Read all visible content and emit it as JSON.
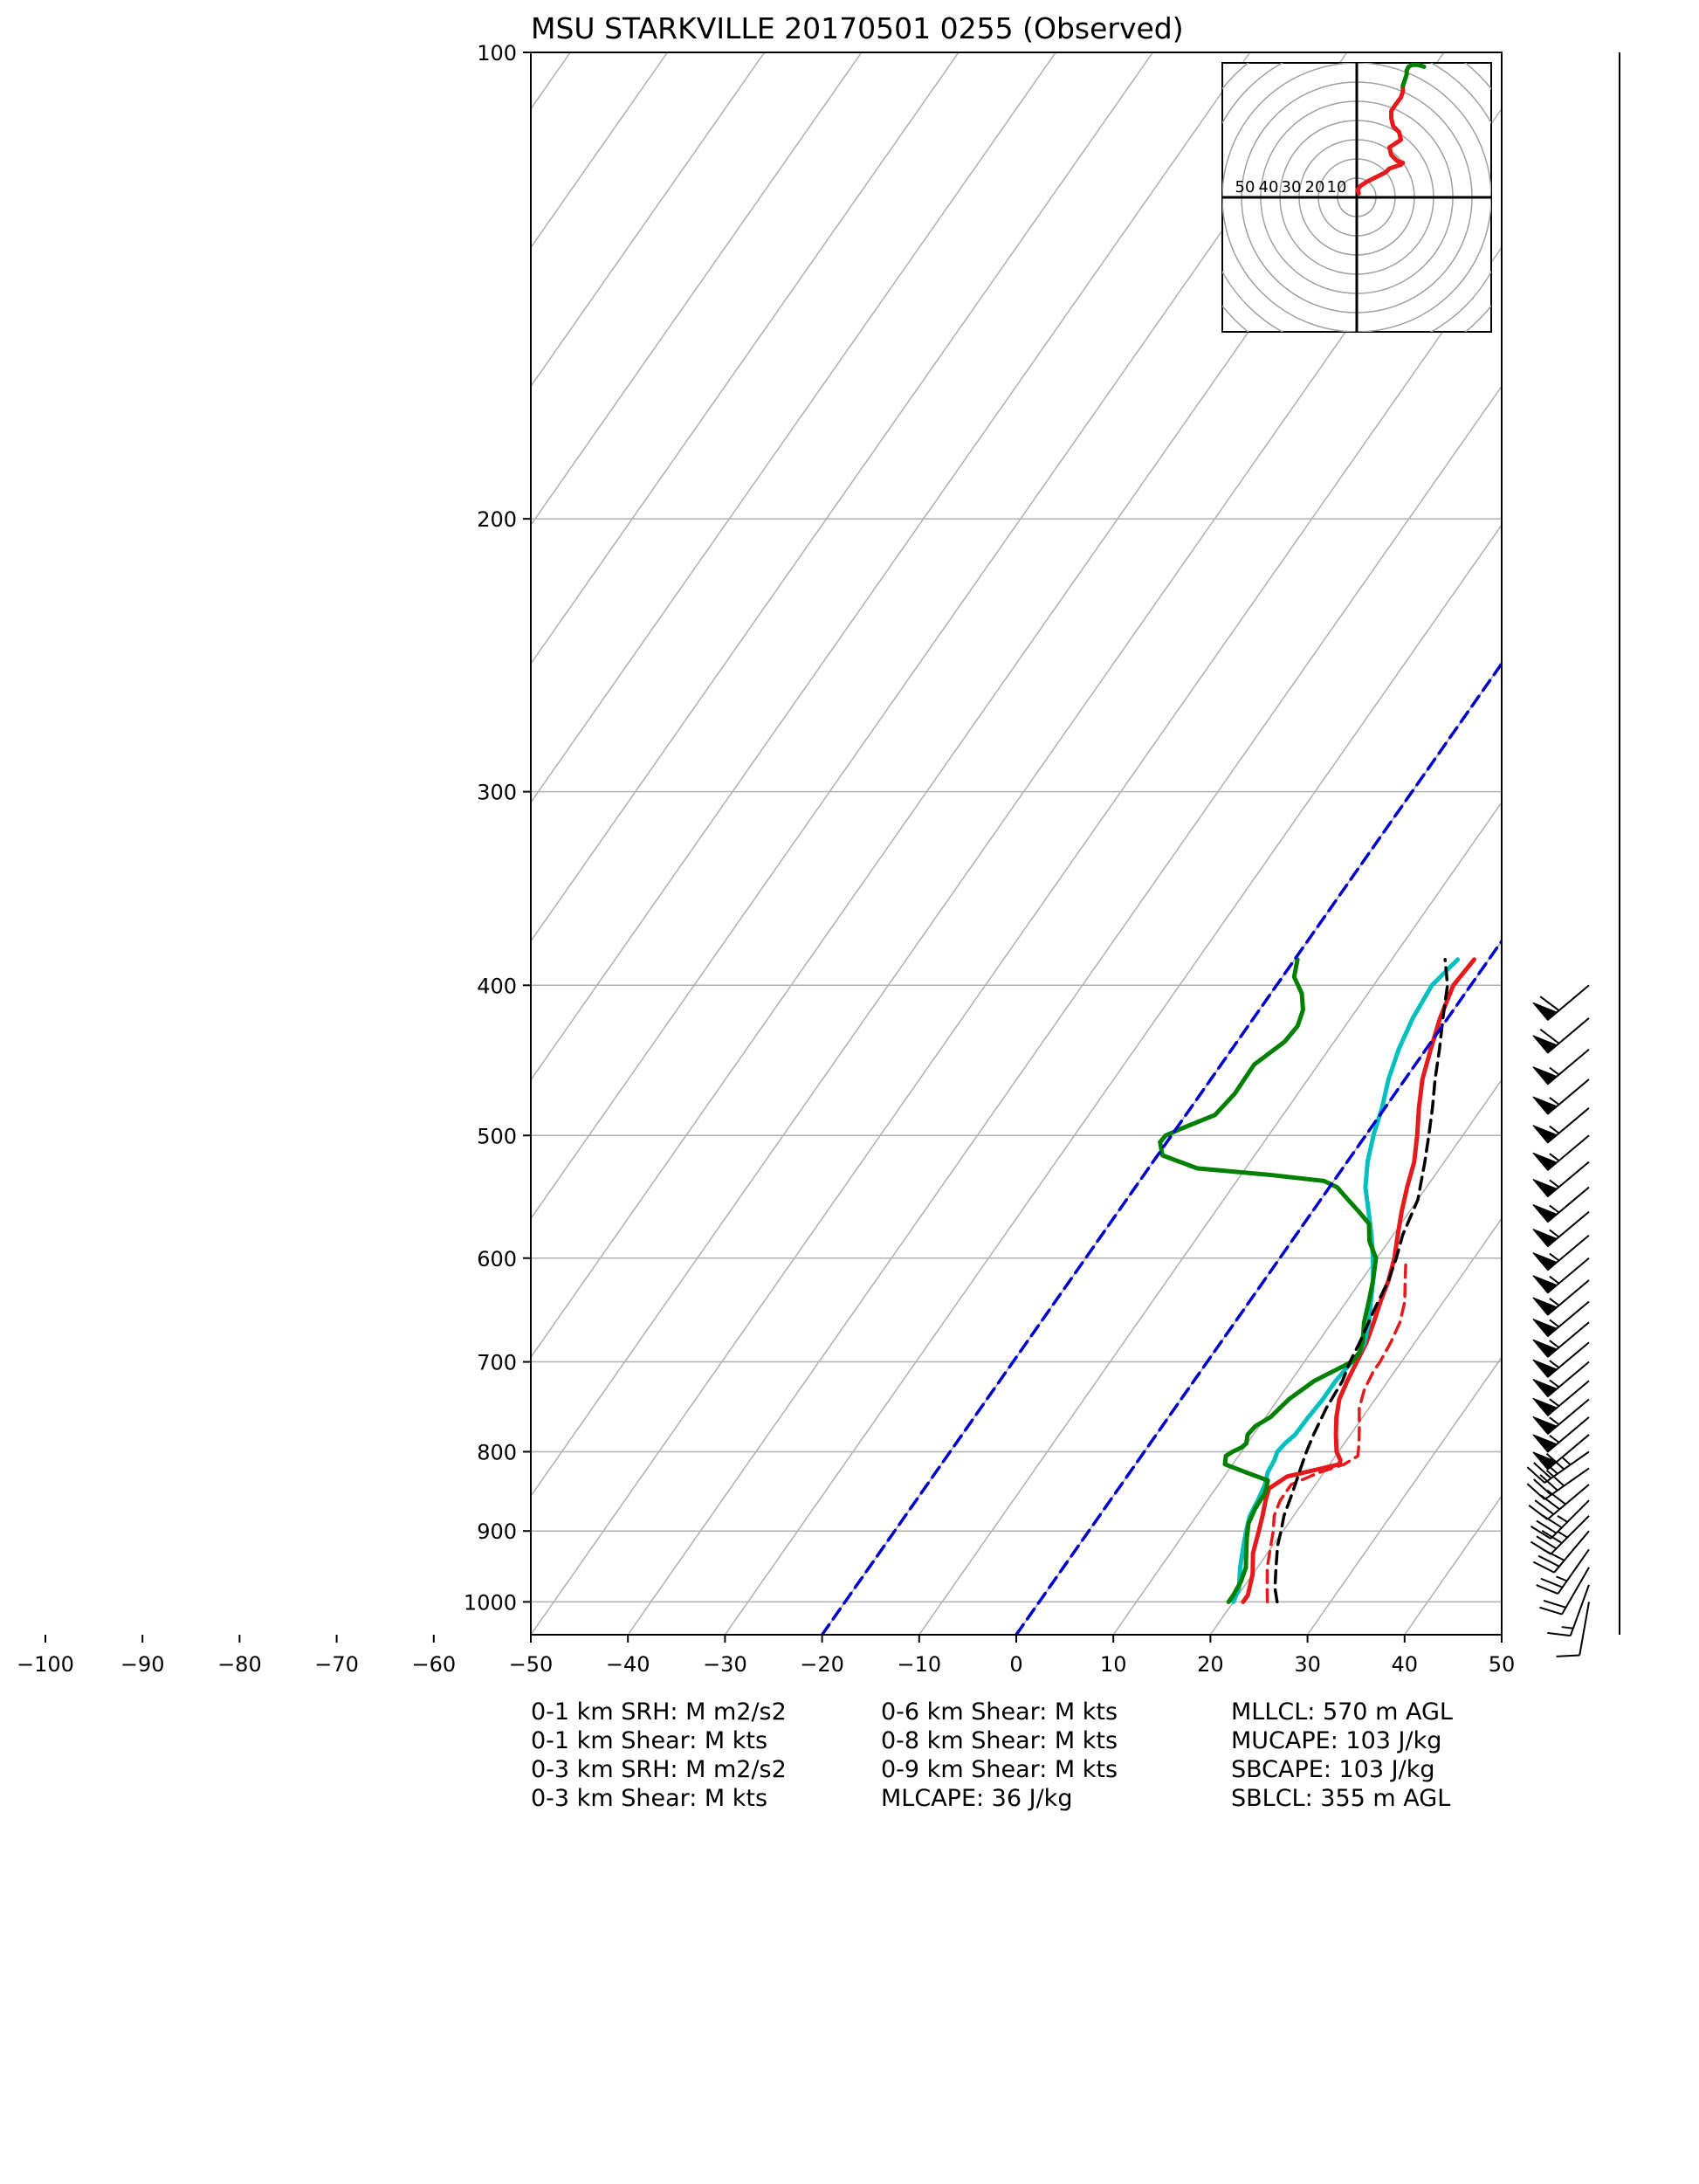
{
  "chart_data": {
    "type": "line",
    "title": "MSU STARKVILLE 20170501 0255   (Observed)",
    "x_axis": {
      "quantity": "temperature (°C)",
      "range": [
        -100,
        50
      ],
      "ticks": [
        -100,
        -90,
        -80,
        -70,
        -60,
        -50,
        -40,
        -30,
        -20,
        -10,
        0,
        10,
        20,
        30,
        40,
        50
      ],
      "tick_labels": [
        "−100",
        "−90",
        "−80",
        "−70",
        "−60",
        "−50",
        "−40",
        "−30",
        "−20",
        "−10",
        "0",
        "10",
        "20",
        "30",
        "40",
        "50"
      ]
    },
    "y_axis": {
      "quantity": "pressure (hPa)",
      "scale": "log",
      "range": [
        1050,
        100
      ],
      "ticks": [
        100,
        200,
        300,
        400,
        500,
        600,
        700,
        800,
        900,
        1000
      ],
      "tick_labels": [
        "100",
        "200",
        "300",
        "400",
        "500",
        "600",
        "700",
        "800",
        "900",
        "1000"
      ]
    },
    "grid": true,
    "skew": true,
    "series": [
      {
        "color": "#e41a1c",
        "style": "solid",
        "p": [
          1000,
          990,
          960,
          930,
          900,
          880,
          860,
          845,
          830,
          820,
          815,
          810,
          800,
          780,
          760,
          740,
          720,
          700,
          680,
          660,
          640,
          620,
          600,
          580,
          560,
          540,
          520,
          500,
          480,
          460,
          440,
          420,
          400,
          385
        ],
        "t": [
          21,
          21,
          20,
          18.5,
          17.5,
          16.8,
          16,
          15.5,
          16.5,
          19.5,
          21,
          20.8,
          19.8,
          18.5,
          17.3,
          16.3,
          15.8,
          15.4,
          15,
          14.3,
          13.5,
          12.8,
          11.8,
          10.5,
          9.2,
          8,
          6.9,
          5.3,
          3.5,
          1.8,
          0.5,
          -0.8,
          -1.8,
          -1.5
        ]
      },
      {
        "color": "#e41a1c",
        "style": "dashed",
        "p": [
          1000,
          980,
          950,
          920,
          900,
          880,
          860,
          840,
          825,
          815,
          805,
          790,
          770,
          750,
          730,
          710,
          700,
          680,
          660,
          640,
          620,
          600
        ],
        "t": [
          23.5,
          22.5,
          21,
          19.8,
          19,
          18,
          17.5,
          17.5,
          19.5,
          21.5,
          22.3,
          21.5,
          20.3,
          19,
          18.2,
          17.8,
          17.8,
          17.5,
          17,
          16,
          14.5,
          13
        ],
        "note": "virtual temperature"
      },
      {
        "color": "#00bfbf",
        "style": "solid",
        "p": [
          1000,
          980,
          950,
          920,
          900,
          880,
          860,
          840,
          825,
          810,
          800,
          790,
          780,
          760,
          740,
          720,
          700,
          690,
          680,
          660,
          640,
          620,
          600,
          580,
          560,
          540,
          520,
          500,
          480,
          460,
          440,
          420,
          400,
          385
        ],
        "t": [
          20,
          19.6,
          18.2,
          17,
          16.2,
          15.5,
          15.2,
          14.8,
          14.2,
          14,
          13.7,
          13.9,
          14.3,
          14.4,
          14.6,
          14.6,
          14.9,
          15,
          14.8,
          13.8,
          12.5,
          11.2,
          9.6,
          7.8,
          5.8,
          3.7,
          2.1,
          0.8,
          -0.3,
          -1.7,
          -2.8,
          -3.6,
          -4,
          -3.2
        ]
      },
      {
        "color": "#008000",
        "style": "solid",
        "p": [
          1000,
          990,
          970,
          950,
          930,
          910,
          890,
          870,
          850,
          835,
          825,
          815,
          805,
          800,
          795,
          790,
          780,
          770,
          760,
          740,
          720,
          700,
          690,
          680,
          660,
          640,
          620,
          600,
          585,
          570,
          560,
          550,
          540,
          535,
          530,
          525,
          515,
          505,
          500,
          495,
          485,
          470,
          450,
          435,
          425,
          415,
          405,
          395,
          385
        ],
        "t": [
          19.5,
          19.5,
          19.3,
          18.8,
          17.8,
          16.8,
          15.9,
          15.5,
          15.4,
          14.8,
          12,
          9.2,
          8.7,
          9.1,
          9.7,
          9.9,
          9.4,
          9.6,
          10.5,
          11.1,
          12.4,
          14.9,
          15,
          14.6,
          13.3,
          12.3,
          11.2,
          9.9,
          8,
          6.7,
          4.8,
          2.8,
          0.8,
          -1,
          -7.2,
          -15,
          -19.5,
          -20.7,
          -20.6,
          -19.5,
          -17,
          -16.5,
          -16.6,
          -15.1,
          -14.9,
          -15.5,
          -16.8,
          -18.8,
          -19.7
        ]
      },
      {
        "color": "#000000",
        "style": "dashed",
        "p": [
          1000,
          980,
          950,
          920,
          900,
          880,
          850,
          820,
          800,
          780,
          750,
          720,
          700,
          680,
          650,
          620,
          600,
          580,
          550,
          520,
          500,
          480,
          460,
          440,
          420,
          400,
          385
        ],
        "t": [
          24.5,
          23.3,
          21.9,
          20.5,
          19.8,
          19,
          18.2,
          17.3,
          16.7,
          16.2,
          15.6,
          15.3,
          14.7,
          14.3,
          13.5,
          12.8,
          12,
          11,
          10,
          8,
          6.5,
          4.9,
          3.1,
          1.4,
          -0.5,
          -2.4,
          -4.5
        ],
        "note": "parcel path"
      },
      {
        "color": "#0000cc",
        "style": "dashed",
        "p": [
          1050,
          100
        ],
        "t": [
          -20,
          -20
        ],
        "note": "isotherm"
      },
      {
        "color": "#0000cc",
        "style": "dashed",
        "p": [
          1050,
          100
        ],
        "t": [
          0,
          0
        ],
        "note": "isotherm"
      }
    ],
    "isotherms_gray": [
      -160,
      -150,
      -140,
      -130,
      -120,
      -110,
      -100,
      -90,
      -80,
      -70,
      -60,
      -50,
      -40,
      -30,
      -20,
      -10,
      0,
      10,
      20,
      30,
      40,
      50
    ],
    "hodograph": {
      "rings_kts": [
        10,
        20,
        30,
        40,
        50,
        60,
        70,
        80,
        90,
        100
      ],
      "ring_labels": [
        "50",
        "40",
        "30",
        "20",
        "10"
      ],
      "trace_red": [
        [
          1,
          2
        ],
        [
          0.5,
          4
        ],
        [
          2,
          6
        ],
        [
          5,
          8
        ],
        [
          9,
          10
        ],
        [
          13,
          12
        ],
        [
          15,
          13
        ],
        [
          17,
          15
        ],
        [
          20,
          16
        ],
        [
          23,
          17
        ],
        [
          24,
          18
        ],
        [
          21,
          19
        ],
        [
          18,
          22
        ],
        [
          17,
          26
        ],
        [
          20,
          28
        ],
        [
          23,
          30
        ],
        [
          22,
          34
        ],
        [
          19,
          37
        ],
        [
          18,
          41
        ],
        [
          18,
          45
        ],
        [
          20,
          48
        ],
        [
          23,
          52
        ],
        [
          24,
          55
        ],
        [
          24,
          58
        ]
      ],
      "trace_green": [
        [
          24,
          58
        ],
        [
          25,
          61
        ],
        [
          26,
          64
        ],
        [
          26,
          66
        ],
        [
          27,
          68
        ],
        [
          29,
          69
        ],
        [
          32,
          69
        ],
        [
          35,
          68
        ]
      ]
    },
    "wind_barbs": {
      "p": [
        1000,
        975,
        950,
        925,
        900,
        880,
        860,
        840,
        820,
        800,
        780,
        760,
        740,
        720,
        700,
        680,
        660,
        640,
        620,
        600,
        580,
        560,
        540,
        520,
        500,
        480,
        460,
        440,
        420,
        400
      ],
      "dir": [
        190,
        200,
        210,
        215,
        220,
        225,
        225,
        230,
        235,
        235,
        230,
        230,
        230,
        230,
        230,
        230,
        230,
        230,
        230,
        230,
        230,
        230,
        230,
        230,
        230,
        230,
        230,
        230,
        230,
        230
      ],
      "speed": [
        10,
        15,
        20,
        25,
        30,
        35,
        35,
        40,
        40,
        45,
        50,
        55,
        55,
        55,
        55,
        55,
        55,
        55,
        55,
        55,
        55,
        55,
        55,
        55,
        55,
        55,
        55,
        55,
        60,
        60
      ]
    },
    "annotations": {
      "col1": [
        "0-1 km SRH: M m2/s2",
        "0-1 km Shear: M kts",
        "0-3 km SRH: M m2/s2",
        "0-3 km Shear: M kts"
      ],
      "col2": [
        "0-6 km Shear: M kts",
        "0-8 km Shear: M kts",
        "0-9 km Shear: M kts",
        "MLCAPE: 36 J/kg"
      ],
      "col3": [
        "MLLCL: 570 m AGL",
        "MUCAPE: 103 J/kg",
        "SBCAPE: 103 J/kg",
        "SBLCL: 355 m AGL"
      ]
    }
  }
}
